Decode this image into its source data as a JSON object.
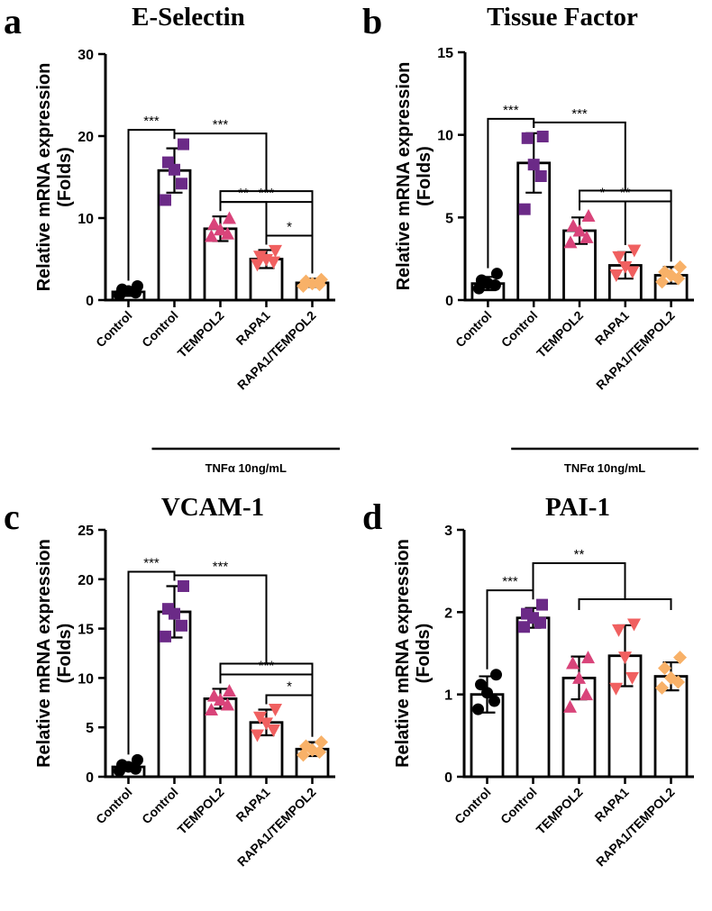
{
  "chart_data": [
    {
      "panel": "a",
      "type": "bar",
      "title": "E-Selectin",
      "ylabel_line1": "Relative mRNA expression",
      "ylabel_line2": "(Folds)",
      "ylim": [
        0,
        30
      ],
      "yticks": [
        0,
        10,
        20,
        30
      ],
      "categories": [
        "Control",
        "Control",
        "TEMPOL2",
        "RAPA1",
        "RAPA1/TEMPOL2"
      ],
      "group_label": "TNFα 10ng/mL",
      "values": [
        1.0,
        15.8,
        8.7,
        5.0,
        2.1
      ],
      "errors": [
        0.5,
        2.7,
        1.5,
        1.1,
        0.5
      ],
      "marker_shapes": [
        "circle",
        "square",
        "triangle-up",
        "triangle-down",
        "diamond"
      ],
      "marker_colors": [
        "#000000",
        "#6b2a87",
        "#d9447a",
        "#f06060",
        "#f8b168"
      ],
      "points": [
        [
          0.6,
          0.9,
          1.1,
          1.3,
          1.7
        ],
        [
          12.2,
          14.2,
          15.9,
          16.8,
          19.0
        ],
        [
          7.8,
          8.1,
          8.6,
          9.3,
          10.0
        ],
        [
          4.3,
          4.6,
          4.9,
          5.3,
          6.0
        ],
        [
          1.7,
          1.9,
          2.0,
          2.3,
          2.5
        ]
      ],
      "significance": [
        {
          "from": 0,
          "to": 1,
          "label": "***",
          "type": "single"
        },
        {
          "from": 1,
          "to": [
            2,
            4
          ],
          "label": "***",
          "type": "to-bracket"
        },
        {
          "from": 2,
          "to": 4,
          "label": "***",
          "type": "single"
        },
        {
          "from": 2,
          "to": 3,
          "label": "**",
          "type": "single"
        },
        {
          "from": 3,
          "to": 4,
          "label": "*",
          "type": "single"
        }
      ]
    },
    {
      "panel": "b",
      "type": "bar",
      "title": "Tissue Factor",
      "ylabel_line1": "Relative mRNA expression",
      "ylabel_line2": "(Folds)",
      "ylim": [
        0,
        15
      ],
      "yticks": [
        0,
        5,
        10,
        15
      ],
      "categories": [
        "Control",
        "Control",
        "TEMPOL2",
        "RAPA1",
        "RAPA1/TEMPOL2"
      ],
      "group_label": "TNFα 10ng/mL",
      "values": [
        1.0,
        8.3,
        4.2,
        2.1,
        1.5
      ],
      "errors": [
        0.4,
        1.8,
        0.8,
        0.8,
        0.5
      ],
      "marker_shapes": [
        "circle",
        "square",
        "triangle-up",
        "triangle-down",
        "diamond"
      ],
      "marker_colors": [
        "#000000",
        "#6b2a87",
        "#d9447a",
        "#f06060",
        "#f8b168"
      ],
      "points": [
        [
          0.7,
          0.9,
          1.0,
          1.2,
          1.6
        ],
        [
          5.5,
          7.5,
          8.2,
          9.8,
          9.9
        ],
        [
          3.5,
          3.8,
          4.2,
          4.5,
          5.1
        ],
        [
          1.5,
          1.7,
          2.0,
          2.6,
          3.0
        ],
        [
          1.1,
          1.3,
          1.5,
          1.7,
          2.0
        ]
      ],
      "significance": [
        {
          "from": 0,
          "to": 1,
          "label": "***",
          "type": "single"
        },
        {
          "from": 1,
          "to": [
            2,
            4
          ],
          "label": "***",
          "type": "to-bracket"
        },
        {
          "from": 2,
          "to": 4,
          "label": "**",
          "type": "single"
        },
        {
          "from": 2,
          "to": 3,
          "label": "*",
          "type": "single"
        }
      ]
    },
    {
      "panel": "c",
      "type": "bar",
      "title": "VCAM-1",
      "ylabel_line1": "Relative mRNA expression",
      "ylabel_line2": "(Folds)",
      "ylim": [
        0,
        25
      ],
      "yticks": [
        0,
        5,
        10,
        15,
        20,
        25
      ],
      "categories": [
        "Control",
        "Control",
        "TEMPOL2",
        "RAPA1",
        "RAPA1/TEMPOL2"
      ],
      "group_label": "TNFα 10ng/mL",
      "values": [
        1.0,
        16.7,
        7.9,
        5.5,
        2.8
      ],
      "errors": [
        0.4,
        2.6,
        1.0,
        1.3,
        0.7
      ],
      "marker_shapes": [
        "circle",
        "square",
        "triangle-up",
        "triangle-down",
        "diamond"
      ],
      "marker_colors": [
        "#000000",
        "#6b2a87",
        "#d9447a",
        "#f06060",
        "#f8b168"
      ],
      "points": [
        [
          0.6,
          0.8,
          1.0,
          1.2,
          1.7
        ],
        [
          14.2,
          15.3,
          16.5,
          17.0,
          19.3
        ],
        [
          6.8,
          7.3,
          7.8,
          8.2,
          8.7
        ],
        [
          4.2,
          4.7,
          5.4,
          6.0,
          6.8
        ],
        [
          2.2,
          2.5,
          2.7,
          3.1,
          3.5
        ]
      ],
      "significance": [
        {
          "from": 0,
          "to": 1,
          "label": "***",
          "type": "single"
        },
        {
          "from": 1,
          "to": [
            2,
            4
          ],
          "label": "***",
          "type": "to-bracket"
        },
        {
          "from": 2,
          "to": 4,
          "label": "***",
          "type": "single"
        },
        {
          "from": 3,
          "to": 4,
          "label": "*",
          "type": "single"
        }
      ]
    },
    {
      "panel": "d",
      "type": "bar",
      "title": "PAI-1",
      "ylabel_line1": "Relative mRNA expression",
      "ylabel_line2": "(Folds)",
      "ylim": [
        0,
        3
      ],
      "yticks": [
        0,
        1,
        2,
        3
      ],
      "categories": [
        "Control",
        "Control",
        "TEMPOL2",
        "RAPA1",
        "RAPA1/TEMPOL2"
      ],
      "group_label": "TNFα 10ng/mL",
      "values": [
        1.0,
        1.93,
        1.2,
        1.47,
        1.22
      ],
      "errors": [
        0.22,
        0.12,
        0.26,
        0.37,
        0.17
      ],
      "marker_shapes": [
        "circle",
        "square",
        "triangle-up",
        "triangle-down",
        "diamond"
      ],
      "marker_colors": [
        "#000000",
        "#6b2a87",
        "#d9447a",
        "#f06060",
        "#f8b168"
      ],
      "points": [
        [
          0.82,
          0.92,
          1.02,
          1.12,
          1.24
        ],
        [
          1.82,
          1.87,
          1.93,
          1.98,
          2.09
        ],
        [
          0.85,
          1.0,
          1.2,
          1.38,
          1.45
        ],
        [
          1.07,
          1.2,
          1.45,
          1.78,
          1.85
        ],
        [
          1.08,
          1.15,
          1.2,
          1.32,
          1.45
        ]
      ],
      "significance": [
        {
          "from": 0,
          "to": 1,
          "label": "***",
          "type": "single"
        },
        {
          "from": 1,
          "to": [
            2,
            4
          ],
          "label": "**",
          "type": "to-bracket"
        }
      ]
    }
  ]
}
